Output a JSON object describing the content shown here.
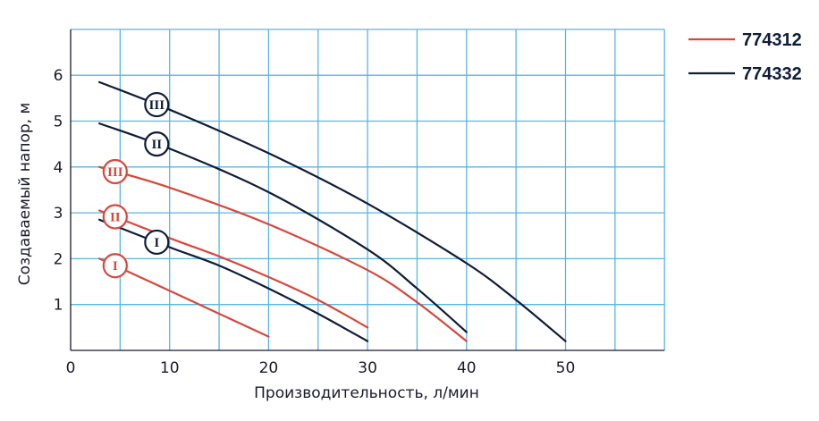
{
  "chart_data": {
    "type": "line",
    "title": "",
    "xlabel": "Производительность, л/мин",
    "ylabel": "Создаваемый напор, м",
    "xlim": [
      0,
      60
    ],
    "ylim": [
      0,
      7
    ],
    "x_ticks": [
      "0",
      "10",
      "20",
      "30",
      "40",
      "50"
    ],
    "y_ticks": [
      "1",
      "2",
      "3",
      "4",
      "5",
      "6"
    ],
    "grid": true,
    "legend_position": "top-right",
    "legend": [
      {
        "label": "774312",
        "color": "#d9473c"
      },
      {
        "label": "774332",
        "color": "#0f1d3a"
      }
    ],
    "series": [
      {
        "model": "774312",
        "mode": "I",
        "color": "#d9473c",
        "points": [
          [
            2.9,
            2.0
          ],
          [
            5,
            1.8
          ],
          [
            10,
            1.3
          ],
          [
            15,
            0.8
          ],
          [
            20,
            0.3
          ]
        ]
      },
      {
        "model": "774312",
        "mode": "II",
        "color": "#d9473c",
        "points": [
          [
            2.9,
            3.05
          ],
          [
            10,
            2.45
          ],
          [
            15,
            2.05
          ],
          [
            20,
            1.6
          ],
          [
            25,
            1.1
          ],
          [
            30,
            0.5
          ]
        ]
      },
      {
        "model": "774312",
        "mode": "III",
        "color": "#d9473c",
        "points": [
          [
            2.9,
            4.0
          ],
          [
            10,
            3.55
          ],
          [
            20,
            2.75
          ],
          [
            30,
            1.75
          ],
          [
            35,
            1.05
          ],
          [
            40,
            0.2
          ]
        ]
      },
      {
        "model": "774332",
        "mode": "I",
        "color": "#0f1d3a",
        "points": [
          [
            2.9,
            2.85
          ],
          [
            10,
            2.25
          ],
          [
            15,
            1.85
          ],
          [
            20,
            1.35
          ],
          [
            25,
            0.8
          ],
          [
            30,
            0.2
          ]
        ]
      },
      {
        "model": "774332",
        "mode": "II",
        "color": "#0f1d3a",
        "points": [
          [
            2.9,
            4.95
          ],
          [
            10,
            4.4
          ],
          [
            20,
            3.45
          ],
          [
            30,
            2.2
          ],
          [
            35,
            1.35
          ],
          [
            40,
            0.4
          ]
        ]
      },
      {
        "model": "774332",
        "mode": "III",
        "color": "#0f1d3a",
        "points": [
          [
            2.9,
            5.85
          ],
          [
            10,
            5.25
          ],
          [
            20,
            4.3
          ],
          [
            30,
            3.2
          ],
          [
            40,
            1.9
          ],
          [
            45,
            1.1
          ],
          [
            50,
            0.2
          ]
        ]
      }
    ]
  }
}
